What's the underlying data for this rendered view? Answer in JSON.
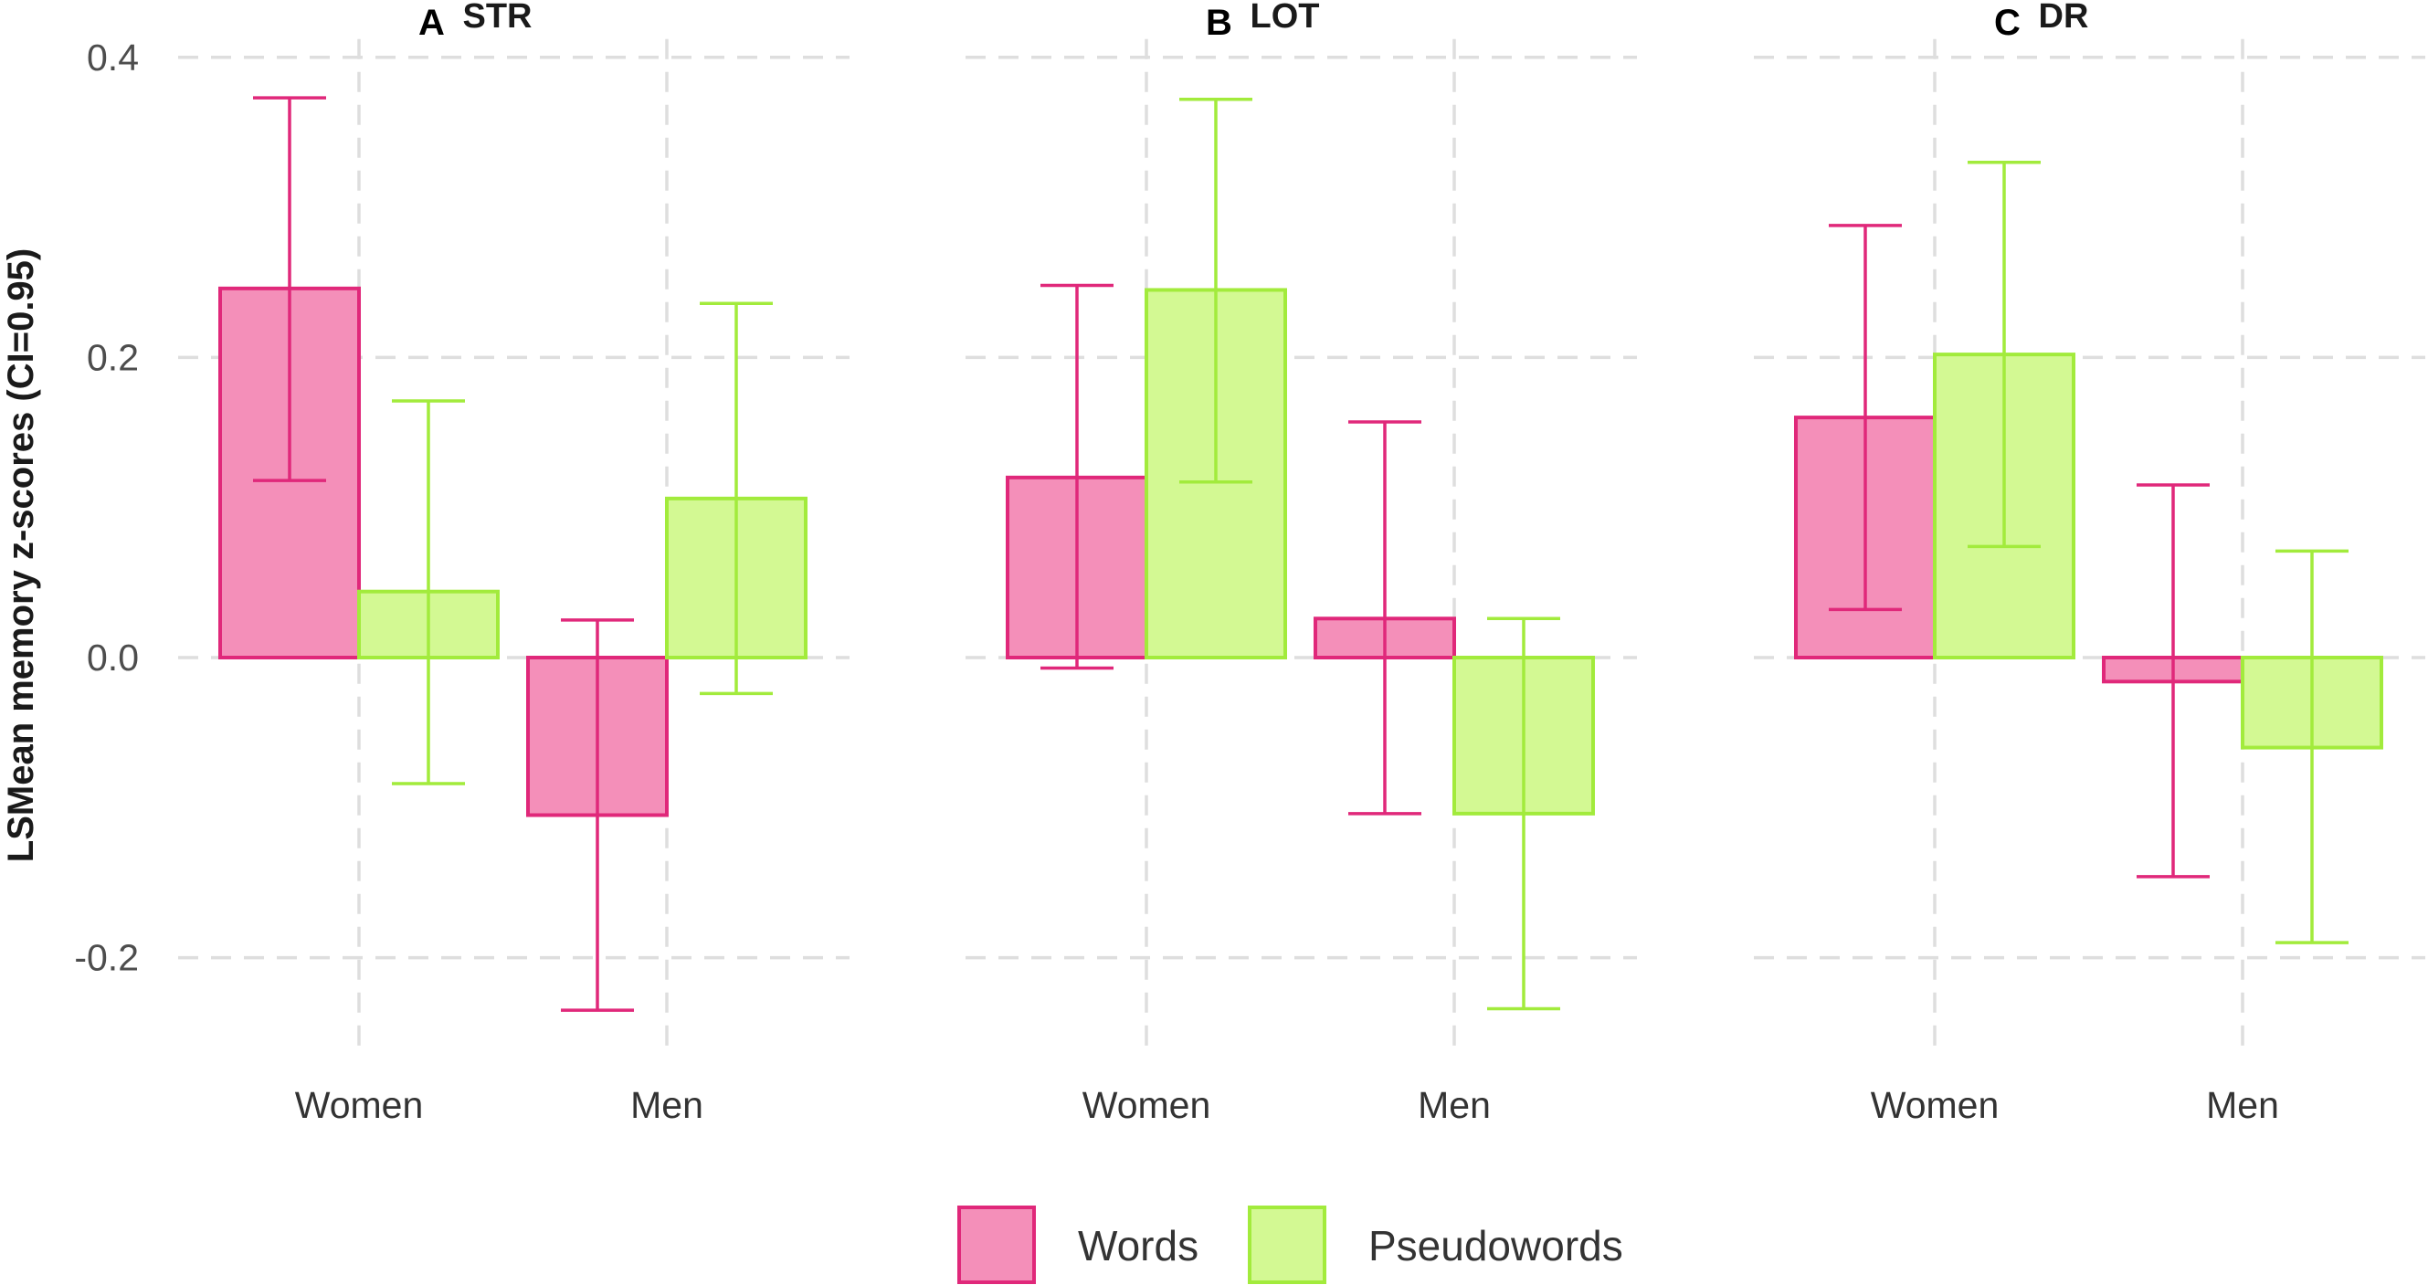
{
  "chart_data": {
    "type": "bar",
    "ylabel": "LSMean memory z-scores (CI=0.95)",
    "ylim": [
      -0.28,
      0.4
    ],
    "yticks": [
      "-0.2",
      "0.0",
      "0.2",
      "0.4"
    ],
    "ytick_values": [
      -0.2,
      0.0,
      0.2,
      0.4
    ],
    "categories": [
      "Women",
      "Men"
    ],
    "legend": {
      "position": "bottom",
      "entries": [
        "Words",
        "Pseudowords"
      ]
    },
    "colors": {
      "Words": {
        "fill": "#f48fb9",
        "stroke": "#e0287a"
      },
      "Pseudowords": {
        "fill": "#d3f993",
        "stroke": "#a2eb3c"
      }
    },
    "grid": true,
    "panels": [
      {
        "label": "A",
        "title": "STR",
        "series": [
          {
            "name": "Words",
            "values": [
              0.246,
              -0.105
            ],
            "ci_low": [
              0.118,
              -0.235
            ],
            "ci_high": [
              0.373,
              0.025
            ]
          },
          {
            "name": "Pseudowords",
            "values": [
              0.044,
              0.106
            ],
            "ci_low": [
              -0.084,
              -0.024
            ],
            "ci_high": [
              0.171,
              0.236
            ]
          }
        ]
      },
      {
        "label": "B",
        "title": "LOT",
        "series": [
          {
            "name": "Words",
            "values": [
              0.12,
              0.026
            ],
            "ci_low": [
              -0.007,
              -0.104
            ],
            "ci_high": [
              0.248,
              0.157
            ]
          },
          {
            "name": "Pseudowords",
            "values": [
              0.245,
              -0.104
            ],
            "ci_low": [
              0.117,
              -0.234
            ],
            "ci_high": [
              0.372,
              0.026
            ]
          }
        ]
      },
      {
        "label": "C",
        "title": "DR",
        "series": [
          {
            "name": "Words",
            "values": [
              0.16,
              -0.016
            ],
            "ci_low": [
              0.032,
              -0.146
            ],
            "ci_high": [
              0.288,
              0.115
            ]
          },
          {
            "name": "Pseudowords",
            "values": [
              0.202,
              -0.06
            ],
            "ci_low": [
              0.074,
              -0.19
            ],
            "ci_high": [
              0.33,
              0.071
            ]
          }
        ]
      }
    ]
  }
}
